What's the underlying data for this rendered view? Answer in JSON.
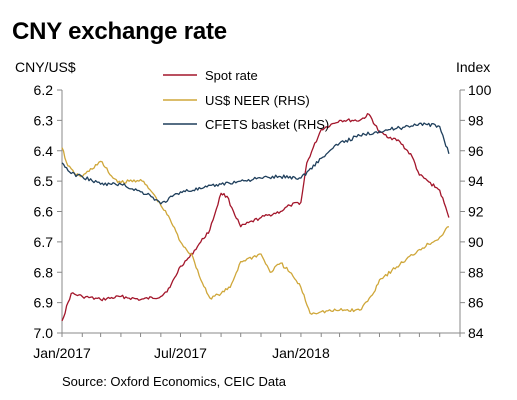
{
  "chart_data": {
    "type": "line",
    "title": "CNY exchange rate",
    "left_axis": {
      "label": "CNY/US$",
      "range": [
        6.2,
        7.0
      ],
      "inverted": true,
      "ticks": [
        "6.2",
        "6.3",
        "6.4",
        "6.5",
        "6.6",
        "6.7",
        "6.8",
        "6.9",
        "7.0"
      ]
    },
    "right_axis": {
      "label": "Index",
      "range": [
        84,
        100
      ],
      "ticks": [
        "100",
        "98",
        "96",
        "94",
        "92",
        "90",
        "88",
        "86",
        "84"
      ]
    },
    "x_axis": {
      "range": [
        "2017-01",
        "2018-09"
      ],
      "ticks": [
        "Jan/2017",
        "Jul/2017",
        "Jan/2018"
      ]
    },
    "grid": false,
    "legend": {
      "placement": "top-center",
      "items": [
        "Spot rate",
        "US$ NEER (RHS)",
        "CFETS basket (RHS)"
      ]
    },
    "series": [
      {
        "name": "Spot rate",
        "axis": "left",
        "color": "#a3162b",
        "x": [
          "2017-01",
          "2017-01-15",
          "2017-02",
          "2017-03",
          "2017-04",
          "2017-05",
          "2017-06",
          "2017-06-15",
          "2017-07",
          "2017-07-15",
          "2017-08",
          "2017-08-15",
          "2017-09",
          "2017-09-10",
          "2017-09-20",
          "2017-10",
          "2017-11",
          "2017-12",
          "2017-12-15",
          "2018-01",
          "2018-01-10",
          "2018-02",
          "2018-03",
          "2018-04",
          "2018-04-15",
          "2018-05",
          "2018-06",
          "2018-06-20",
          "2018-07",
          "2018-08",
          "2018-08-15"
        ],
        "values": [
          6.96,
          6.87,
          6.88,
          6.89,
          6.88,
          6.89,
          6.88,
          6.85,
          6.78,
          6.75,
          6.7,
          6.66,
          6.54,
          6.55,
          6.6,
          6.65,
          6.62,
          6.6,
          6.58,
          6.57,
          6.44,
          6.33,
          6.3,
          6.3,
          6.28,
          6.34,
          6.37,
          6.42,
          6.48,
          6.53,
          6.62
        ]
      },
      {
        "name": "US$ NEER (RHS)",
        "axis": "right",
        "color": "#cfa73a",
        "x": [
          "2017-01",
          "2017-01-10",
          "2017-01-20",
          "2017-02",
          "2017-03",
          "2017-03-20",
          "2017-04",
          "2017-05",
          "2017-05-20",
          "2017-06",
          "2017-06-15",
          "2017-07",
          "2017-07-20",
          "2017-08",
          "2017-08-15",
          "2017-09",
          "2017-09-15",
          "2017-10",
          "2017-11",
          "2017-11-15",
          "2017-12",
          "2017-12-15",
          "2018-01",
          "2018-01-15",
          "2018-02",
          "2018-03",
          "2018-04",
          "2018-04-20",
          "2018-05",
          "2018-06",
          "2018-07",
          "2018-08",
          "2018-08-15"
        ],
        "values": [
          96.2,
          95.0,
          94.5,
          94.3,
          95.3,
          94.2,
          93.9,
          94.1,
          93.2,
          92.4,
          91.5,
          90.0,
          89.0,
          87.5,
          86.3,
          86.6,
          87.0,
          88.7,
          89.2,
          88.0,
          88.6,
          88.0,
          87.0,
          85.3,
          85.4,
          85.5,
          85.5,
          86.5,
          87.5,
          88.5,
          89.5,
          90.3,
          91.0
        ]
      },
      {
        "name": "CFETS basket (RHS)",
        "axis": "right",
        "color": "#1f3f5c",
        "x": [
          "2017-01",
          "2017-01-15",
          "2017-02",
          "2017-03",
          "2017-04",
          "2017-05",
          "2017-05-15",
          "2017-06",
          "2017-07",
          "2017-08",
          "2017-09",
          "2017-10",
          "2017-11",
          "2017-12",
          "2018-01",
          "2018-02",
          "2018-03",
          "2018-04",
          "2018-05",
          "2018-06",
          "2018-07",
          "2018-08",
          "2018-08-15"
        ],
        "values": [
          95.2,
          94.5,
          94.3,
          93.8,
          93.8,
          93.3,
          93.1,
          92.5,
          93.3,
          93.5,
          93.8,
          94.0,
          94.2,
          94.3,
          94.2,
          95.5,
          96.5,
          97.0,
          97.3,
          97.5,
          97.8,
          97.6,
          95.8
        ]
      }
    ]
  },
  "source": "Source:  Oxford Economics, CEIC Data"
}
